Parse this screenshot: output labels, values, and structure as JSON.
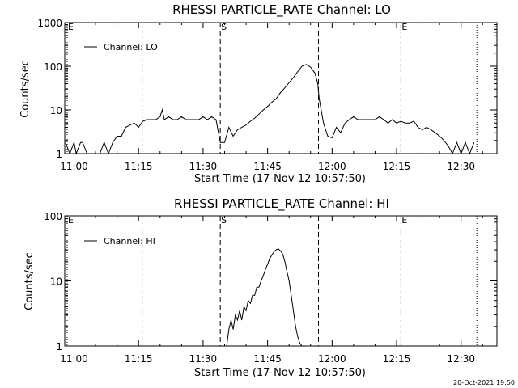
{
  "footer": {
    "timestamp": "20-Oct-2021 19:50"
  },
  "chart_data": [
    {
      "type": "line",
      "title": "RHESSI PARTICLE_RATE Channel: LO",
      "xlabel": "Start Time (17-Nov-12 10:57:50)",
      "ylabel": "Counts/sec",
      "xaxis": {
        "range": [
          "10:57:50",
          "12:38:20"
        ],
        "tick_values": [
          "11:00",
          "11:15",
          "11:30",
          "11:45",
          "12:00",
          "12:15",
          "12:30"
        ]
      },
      "yaxis": {
        "scale": "log",
        "range": [
          1,
          1000
        ],
        "tick_labels": [
          "1",
          "10",
          "100",
          "1000"
        ]
      },
      "legend": {
        "label": "Channel: LO",
        "position": "top-left"
      },
      "markers": [
        {
          "label": "E",
          "time": "10:57:50",
          "style": "dotted"
        },
        {
          "label": "",
          "time": "11:15:50",
          "style": "dotted"
        },
        {
          "label": "S",
          "time": "11:34:00",
          "style": "dashed"
        },
        {
          "label": "",
          "time": "11:56:50",
          "style": "dashed"
        },
        {
          "label": "E",
          "time": "12:16:00",
          "style": "dotted"
        },
        {
          "label": "",
          "time": "12:33:40",
          "style": "dotted"
        }
      ],
      "series": [
        {
          "x": [
            "10:58:00",
            "10:59:00",
            "11:00:00",
            "11:00:30",
            "11:01:30",
            "11:02:00",
            "11:03:00",
            "11:04:00",
            "11:05:00",
            "11:06:00",
            "11:07:00",
            "11:08:00",
            "11:09:00",
            "11:10:00",
            "11:11:00",
            "11:12:00",
            "11:13:00",
            "11:14:00",
            "11:15:00",
            "11:16:00",
            "11:17:00",
            "11:18:00",
            "11:19:00",
            "11:20:00",
            "11:20:30",
            "11:21:00",
            "11:22:00",
            "11:23:00",
            "11:24:00",
            "11:25:00",
            "11:26:00",
            "11:27:00",
            "11:28:00",
            "11:29:00",
            "11:30:00",
            "11:31:00",
            "11:32:00",
            "11:33:00",
            "11:34:00",
            "11:35:00",
            "11:36:00",
            "11:37:00",
            "11:38:00",
            "11:39:00",
            "11:40:00",
            "11:41:00",
            "11:42:00",
            "11:43:00",
            "11:44:00",
            "11:45:00",
            "11:46:00",
            "11:47:00",
            "11:48:00",
            "11:49:00",
            "11:50:00",
            "11:51:00",
            "11:52:00",
            "11:53:00",
            "11:54:00",
            "11:55:00",
            "11:56:00",
            "11:56:40",
            "11:57:00",
            "11:58:00",
            "11:59:00",
            "12:00:00",
            "12:01:00",
            "12:02:00",
            "12:03:00",
            "12:04:00",
            "12:05:00",
            "12:06:00",
            "12:07:00",
            "12:08:00",
            "12:09:00",
            "12:10:00",
            "12:11:00",
            "12:12:00",
            "12:13:00",
            "12:14:00",
            "12:15:00",
            "12:16:00",
            "12:17:00",
            "12:18:00",
            "12:19:00",
            "12:20:00",
            "12:21:00",
            "12:22:00",
            "12:23:00",
            "12:24:00",
            "12:25:00",
            "12:26:00",
            "12:27:00",
            "12:28:00",
            "12:29:00",
            "12:30:00",
            "12:31:00",
            "12:32:00",
            "12:33:00"
          ],
          "y": [
            1.8,
            1,
            1.8,
            1,
            1.8,
            1.8,
            1,
            1,
            1,
            1,
            1.8,
            1,
            1.8,
            2.5,
            2.5,
            4,
            4.5,
            5,
            4,
            5.5,
            6,
            6,
            6,
            7,
            10,
            6,
            7,
            6,
            6,
            7,
            6,
            6,
            6,
            6,
            7,
            6,
            7,
            6,
            1.8,
            1.8,
            4,
            2.5,
            3.5,
            4,
            4.5,
            5.5,
            6.5,
            8,
            10,
            12,
            15,
            18,
            25,
            32,
            42,
            55,
            75,
            100,
            110,
            95,
            70,
            40,
            18,
            5,
            2.5,
            2.3,
            4,
            3,
            5,
            6,
            7,
            6,
            6,
            6,
            6,
            6,
            7,
            6,
            5,
            6,
            5,
            5.5,
            5,
            5,
            5.5,
            4,
            3.5,
            4,
            3.5,
            3,
            2.5,
            2,
            1.5,
            1,
            1.8,
            1,
            1.8,
            1,
            1.8
          ]
        }
      ]
    },
    {
      "type": "line",
      "title": "RHESSI PARTICLE_RATE Channel: HI",
      "xlabel": "Start Time (17-Nov-12 10:57:50)",
      "ylabel": "Counts/sec",
      "xaxis": {
        "range": [
          "10:57:50",
          "12:38:20"
        ],
        "tick_values": [
          "11:00",
          "11:15",
          "11:30",
          "11:45",
          "12:00",
          "12:15",
          "12:30"
        ]
      },
      "yaxis": {
        "scale": "log",
        "range": [
          1,
          100
        ],
        "tick_labels": [
          "1",
          "10",
          "100"
        ]
      },
      "legend": {
        "label": "Channel: HI",
        "position": "top-left"
      },
      "markers": [
        {
          "label": "E",
          "time": "10:57:50",
          "style": "dotted"
        },
        {
          "label": "",
          "time": "11:15:50",
          "style": "dotted"
        },
        {
          "label": "S",
          "time": "11:34:00",
          "style": "dashed"
        },
        {
          "label": "",
          "time": "11:56:50",
          "style": "dashed"
        },
        {
          "label": "E",
          "time": "12:16:00",
          "style": "dotted"
        },
        {
          "label": "",
          "time": "12:33:40",
          "style": "dotted"
        }
      ],
      "series": [
        {
          "x": [
            "11:35:30",
            "11:36:00",
            "11:36:30",
            "11:37:00",
            "11:37:30",
            "11:38:00",
            "11:38:30",
            "11:39:00",
            "11:39:30",
            "11:40:00",
            "11:40:30",
            "11:41:00",
            "11:41:30",
            "11:42:00",
            "11:42:30",
            "11:43:00",
            "11:43:30",
            "11:44:00",
            "11:44:30",
            "11:45:00",
            "11:45:30",
            "11:46:00",
            "11:46:30",
            "11:47:00",
            "11:47:30",
            "11:48:00",
            "11:48:30",
            "11:49:00",
            "11:49:30",
            "11:50:00",
            "11:50:30",
            "11:51:00",
            "11:51:30",
            "11:52:00",
            "11:52:30",
            "11:53:00"
          ],
          "y": [
            1,
            1.8,
            2.5,
            1.8,
            3,
            2.5,
            3.5,
            2.5,
            4,
            3.5,
            5,
            4.5,
            6,
            6,
            8,
            8,
            10,
            12,
            15,
            18,
            22,
            25,
            28,
            30,
            31,
            29,
            26,
            20,
            14,
            10,
            6,
            3.5,
            2,
            1.4,
            1.1,
            1
          ]
        }
      ]
    }
  ]
}
